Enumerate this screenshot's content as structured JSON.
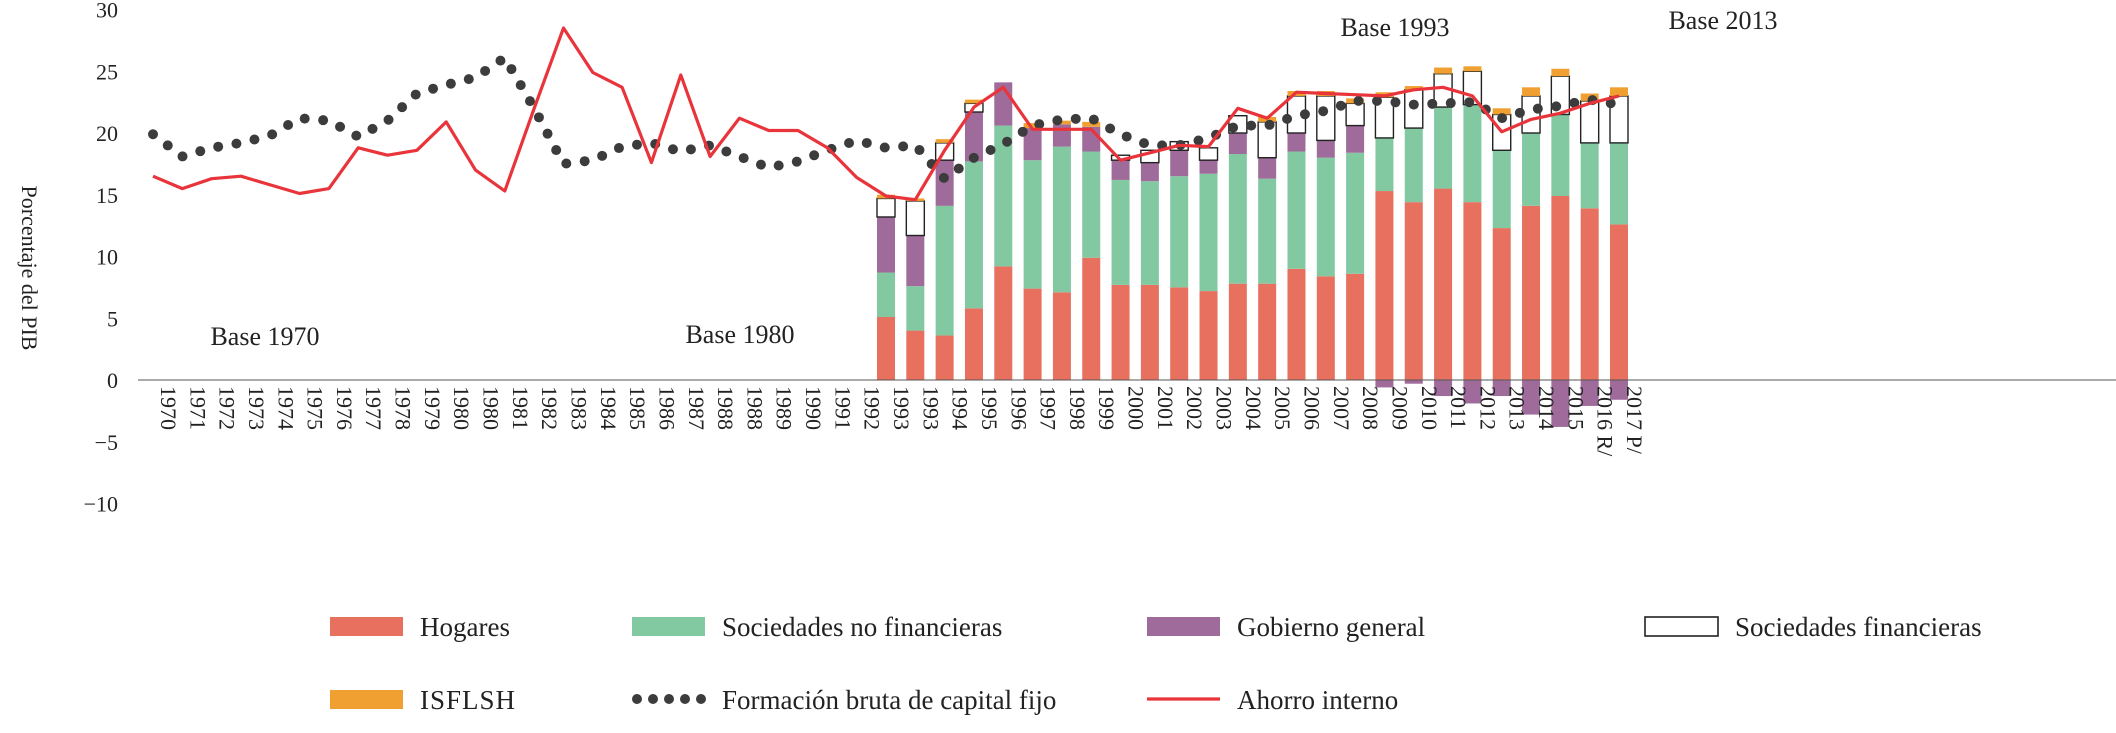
{
  "chart_data": {
    "type": "bar",
    "ylabel": "Porcentaje del PIB",
    "ylim": [
      -10,
      30
    ],
    "yticks": [
      -10,
      -5,
      0,
      5,
      10,
      15,
      20,
      25,
      30
    ],
    "yticks_visible": [
      -10,
      -5,
      0,
      5,
      10,
      15,
      20,
      25,
      30
    ],
    "categories": [
      "1970",
      "1971",
      "1972",
      "1973",
      "1974",
      "1975",
      "1976",
      "1977",
      "1978",
      "1979",
      "1980",
      "1980",
      "1981",
      "1982",
      "1983",
      "1984",
      "1985",
      "1986",
      "1987",
      "1988",
      "1988",
      "1989",
      "1990",
      "1991",
      "1992",
      "1993",
      "1993",
      "1994",
      "1995",
      "1996",
      "1997",
      "1998",
      "1999",
      "2000",
      "2001",
      "2002",
      "2003",
      "2004",
      "2005",
      "2006",
      "2007",
      "2008",
      "2009",
      "2010",
      "2011",
      "2012",
      "2013",
      "2014",
      "2015",
      "2016 R/",
      "2017 P/"
    ],
    "annotations": [
      "Base 1970",
      "Base 1980",
      "Base 1993",
      "Base 2013"
    ],
    "series": [
      {
        "name": "Hogares",
        "color": "#e8705f",
        "kind": "stacked-bar",
        "values": [
          null,
          null,
          null,
          null,
          null,
          null,
          null,
          null,
          null,
          null,
          null,
          null,
          null,
          null,
          null,
          null,
          null,
          null,
          null,
          null,
          null,
          null,
          null,
          null,
          null,
          5.1,
          4.0,
          3.6,
          5.8,
          9.2,
          7.4,
          7.1,
          9.9,
          7.7,
          7.7,
          7.5,
          7.2,
          7.8,
          7.8,
          9.0,
          8.4,
          8.6,
          15.3,
          14.4,
          15.5,
          14.4,
          12.3,
          14.1,
          14.9,
          13.9,
          12.6
        ]
      },
      {
        "name": "Sociedades no financieras",
        "color": "#82c9a2",
        "kind": "stacked-bar",
        "values": [
          null,
          null,
          null,
          null,
          null,
          null,
          null,
          null,
          null,
          null,
          null,
          null,
          null,
          null,
          null,
          null,
          null,
          null,
          null,
          null,
          null,
          null,
          null,
          null,
          null,
          3.6,
          3.6,
          10.5,
          11.9,
          11.4,
          10.4,
          11.8,
          8.6,
          8.5,
          8.4,
          9.0,
          9.5,
          10.5,
          8.5,
          9.5,
          9.6,
          9.8,
          4.3,
          6.0,
          6.6,
          7.9,
          6.3,
          5.9,
          6.6,
          5.3,
          6.6
        ]
      },
      {
        "name": "Gobierno general",
        "color": "#9e6b9a",
        "kind": "stacked-bar",
        "values": [
          null,
          null,
          null,
          null,
          null,
          null,
          null,
          null,
          null,
          null,
          null,
          null,
          null,
          null,
          null,
          null,
          null,
          null,
          null,
          null,
          null,
          null,
          null,
          null,
          null,
          4.5,
          4.1,
          3.7,
          4.0,
          3.5,
          2.6,
          1.8,
          2.0,
          1.6,
          1.5,
          2.1,
          1.1,
          1.7,
          1.7,
          1.5,
          1.4,
          2.2,
          -0.6,
          -0.3,
          -1.3,
          -1.9,
          -1.3,
          -2.8,
          -3.8,
          -2.1,
          -1.6
        ]
      },
      {
        "name": "Sociedades financieras",
        "color": "#ffffff",
        "kind": "stacked-bar",
        "values": [
          null,
          null,
          null,
          null,
          null,
          null,
          null,
          null,
          null,
          null,
          null,
          null,
          null,
          null,
          null,
          null,
          null,
          null,
          null,
          null,
          null,
          null,
          null,
          null,
          null,
          1.5,
          2.8,
          1.4,
          0.7,
          0.0,
          0.0,
          0.0,
          0.0,
          0.4,
          1.0,
          0.7,
          1.0,
          1.4,
          2.9,
          3.0,
          3.6,
          1.8,
          3.3,
          3.1,
          2.7,
          2.7,
          2.9,
          3.0,
          3.1,
          3.4,
          3.8
        ]
      },
      {
        "name": "ISFLSH",
        "color": "#f0a030",
        "kind": "stacked-bar",
        "values": [
          null,
          null,
          null,
          null,
          null,
          null,
          null,
          null,
          null,
          null,
          null,
          null,
          null,
          null,
          null,
          null,
          null,
          null,
          null,
          null,
          null,
          null,
          null,
          null,
          null,
          0.3,
          0.2,
          0.3,
          0.3,
          0.0,
          0.4,
          0.3,
          0.4,
          0.0,
          0.0,
          0.0,
          0.0,
          0.0,
          0.4,
          0.4,
          0.4,
          0.4,
          0.4,
          0.3,
          0.5,
          0.4,
          0.5,
          0.7,
          0.6,
          0.6,
          0.7
        ]
      },
      {
        "name": "Formación bruta de capital fijo",
        "color": "#3c3c3c",
        "kind": "dotted-line",
        "values": [
          19.9,
          18.1,
          18.8,
          19.2,
          19.8,
          21.2,
          21.0,
          19.7,
          21.0,
          23.2,
          23.9,
          24.5,
          26.1,
          22.0,
          17.5,
          17.8,
          18.9,
          19.2,
          18.5,
          19.0,
          18.1,
          17.2,
          17.7,
          18.6,
          19.4,
          18.8,
          19.0,
          16.3,
          18.0,
          19.1,
          20.6,
          21.1,
          21.2,
          19.9,
          19.0,
          19.0,
          19.6,
          20.6,
          20.6,
          21.4,
          21.8,
          22.6,
          22.6,
          22.3,
          22.4,
          22.5,
          21.2,
          21.9,
          22.2,
          22.7,
          22.3
        ]
      },
      {
        "name": "Ahorro interno",
        "color": "#e8343a",
        "kind": "line",
        "values": [
          16.5,
          15.5,
          16.3,
          16.5,
          15.8,
          15.1,
          15.5,
          18.8,
          18.2,
          18.6,
          20.9,
          17.0,
          15.3,
          22.0,
          28.5,
          24.9,
          23.7,
          17.6,
          24.7,
          18.1,
          21.2,
          20.2,
          20.2,
          18.8,
          16.4,
          14.9,
          14.6,
          18.6,
          22.1,
          23.7,
          20.3,
          20.3,
          20.3,
          17.8,
          18.4,
          19.0,
          18.9,
          22.0,
          21.2,
          23.3,
          23.2,
          23.1,
          23.0,
          23.5,
          23.7,
          23.0,
          20.1,
          21.1,
          21.6,
          22.4,
          23.0
        ]
      }
    ],
    "legend": [
      {
        "label": "Hogares",
        "swatch": "bar",
        "color": "#e8705f"
      },
      {
        "label": "Sociedades no financieras",
        "swatch": "bar",
        "color": "#82c9a2"
      },
      {
        "label": "Gobierno general",
        "swatch": "bar",
        "color": "#9e6b9a"
      },
      {
        "label": "Sociedades financieras",
        "swatch": "bar-outline",
        "color": "#ffffff"
      },
      {
        "label": "ISFLSH",
        "swatch": "bar",
        "color": "#f0a030",
        "smallcaps": true
      },
      {
        "label": "Formación bruta de capital fijo",
        "swatch": "dots",
        "color": "#3c3c3c"
      },
      {
        "label": "Ahorro interno",
        "swatch": "line",
        "color": "#e8343a"
      }
    ],
    "legend_placement": "bottom",
    "grid": false
  }
}
